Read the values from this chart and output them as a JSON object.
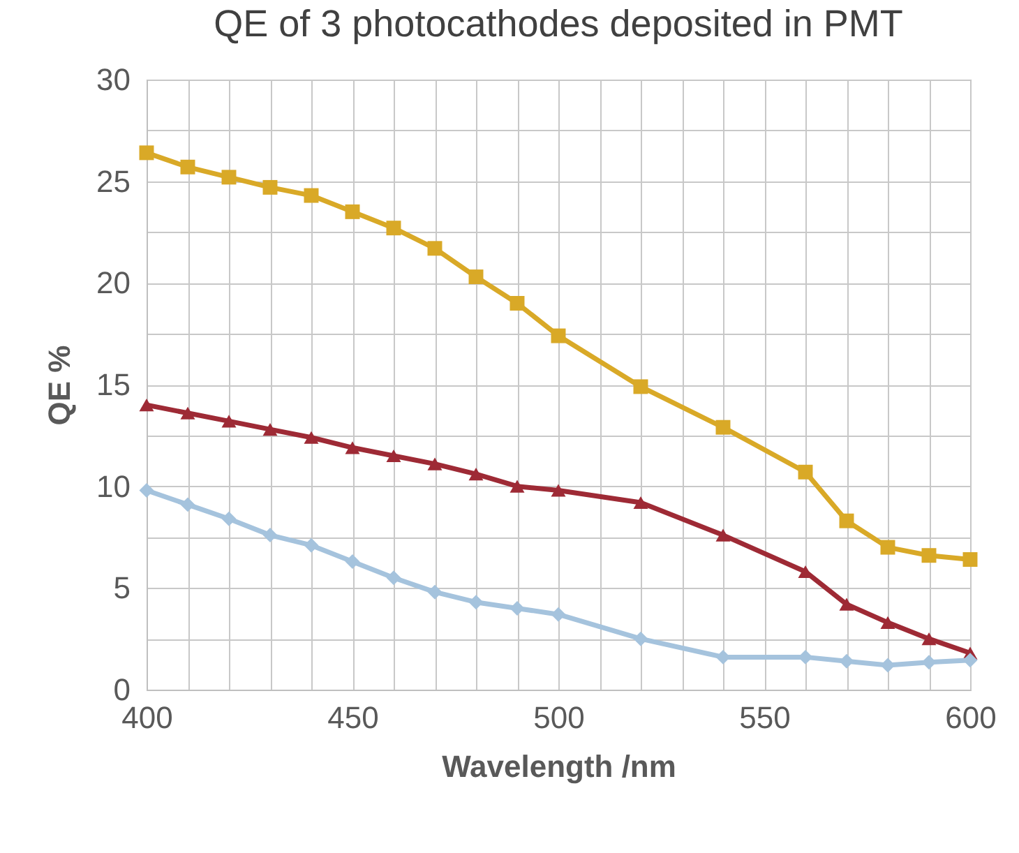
{
  "chart_data": {
    "type": "line",
    "title": "QE of 3 photocathodes deposited in PMT",
    "xlabel": "Wavelength /nm",
    "ylabel": "QE %",
    "x": [
      400,
      410,
      420,
      430,
      440,
      450,
      460,
      470,
      480,
      490,
      500,
      520,
      540,
      560,
      570,
      580,
      590,
      600
    ],
    "series": [
      {
        "color": "#d9a927",
        "marker": "square",
        "values": [
          26.4,
          25.7,
          25.2,
          24.7,
          24.3,
          23.5,
          22.7,
          21.7,
          20.3,
          19.0,
          17.4,
          14.9,
          12.9,
          10.7,
          8.3,
          7.0,
          6.6,
          6.4
        ]
      },
      {
        "color": "#9e2a35",
        "marker": "triangle",
        "values": [
          14.0,
          13.6,
          13.2,
          12.8,
          12.4,
          11.9,
          11.5,
          11.1,
          10.6,
          10.0,
          9.8,
          9.2,
          7.6,
          5.8,
          4.2,
          3.3,
          2.5,
          1.8
        ]
      },
      {
        "color": "#a5c3dd",
        "marker": "diamond",
        "values": [
          9.8,
          9.1,
          8.4,
          7.6,
          7.1,
          6.3,
          5.5,
          4.8,
          4.3,
          4.0,
          3.7,
          2.5,
          1.6,
          1.6,
          1.4,
          1.2,
          1.35,
          1.45
        ]
      }
    ],
    "xlim": [
      400,
      600
    ],
    "xticks": [
      400,
      {
        "value": 410,
        "label": null
      },
      {
        "value": 420,
        "label": null
      },
      {
        "value": 430,
        "label": null
      },
      {
        "value": 440,
        "label": null
      },
      450,
      {
        "value": 460,
        "label": null
      },
      {
        "value": 470,
        "label": null
      },
      {
        "value": 480,
        "label": null
      },
      {
        "value": 490,
        "label": null
      },
      500,
      {
        "value": 510,
        "label": null
      },
      {
        "value": 520,
        "label": null
      },
      {
        "value": 530,
        "label": null
      },
      {
        "value": 540,
        "label": null
      },
      550,
      {
        "value": 560,
        "label": null
      },
      {
        "value": 570,
        "label": null
      },
      {
        "value": 580,
        "label": null
      },
      {
        "value": 590,
        "label": null
      },
      600
    ],
    "ylim": [
      0,
      30
    ],
    "yticks": [
      0,
      {
        "value": 2.5,
        "label": null
      },
      5,
      {
        "value": 7.5,
        "label": null
      },
      10,
      {
        "value": 12.5,
        "label": null
      },
      15,
      {
        "value": 17.5,
        "label": null
      },
      20,
      {
        "value": 22.5,
        "label": null
      },
      25,
      {
        "value": 27.5,
        "label": null
      },
      30
    ],
    "grid": true,
    "legend": false,
    "line_style": "solid"
  }
}
